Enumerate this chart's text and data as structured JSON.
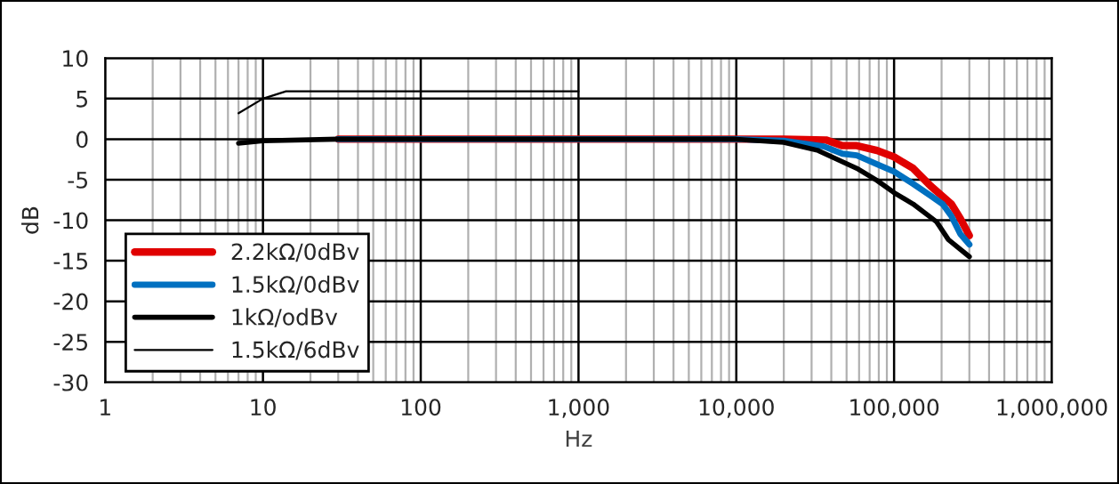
{
  "chart_data": {
    "type": "line",
    "xlabel": "Hz",
    "ylabel": "dB",
    "log": "x",
    "grid": true,
    "legend": "bottom left",
    "marker": "none",
    "line_style": "solid",
    "xlim": [
      1,
      1000000
    ],
    "ylim": [
      -30,
      10
    ],
    "xticks": [
      1,
      10,
      100,
      {
        "value": 1000,
        "label": "1,000"
      },
      {
        "value": 10000,
        "label": "10,000"
      },
      {
        "value": 100000,
        "label": "100,000"
      },
      {
        "value": 1000000,
        "label": "1,000,000"
      }
    ],
    "yticks": [
      -30,
      -25,
      -20,
      -15,
      -10,
      -5,
      0,
      5,
      10
    ],
    "series": [
      {
        "name": "2.2kΩ/0dBv",
        "color": "#e00000",
        "x": [
          30,
          10000,
          20000,
          37000,
          47000,
          58000,
          78000,
          100000,
          132000,
          171000,
          231000,
          263000,
          300000
        ],
        "values": [
          0,
          0,
          0,
          -0.1,
          -0.8,
          -0.8,
          -1.4,
          -2.2,
          -3.6,
          -5.8,
          -8,
          -9.8,
          -11.9
        ]
      },
      {
        "name": "1.5kΩ/0dBv",
        "color": "#0070c0",
        "x": [
          30,
          10000,
          20000,
          36000,
          47000,
          58000,
          78000,
          100000,
          132000,
          171000,
          203000,
          231000,
          263000,
          300000
        ],
        "values": [
          0,
          0,
          -0.2,
          -0.9,
          -1.8,
          -2,
          -3.1,
          -4,
          -5.5,
          -7,
          -8,
          -9.5,
          -11.7,
          -13
        ]
      },
      {
        "name": "1kΩ/odBv",
        "color": "#000000",
        "x": [
          7,
          10,
          30,
          10000,
          20000,
          33000,
          58000,
          78000,
          100000,
          132000,
          186000,
          221000,
          300000
        ],
        "values": [
          -0.5,
          -0.2,
          0,
          0,
          -0.4,
          -1.4,
          -3.6,
          -5.1,
          -6.6,
          -8,
          -10.2,
          -12.4,
          -14.5
        ]
      },
      {
        "name": "1.5kΩ/6dBv",
        "color": "#000000",
        "x": [
          7,
          10,
          14,
          1000
        ],
        "values": [
          3.2,
          5,
          5.9,
          5.9
        ]
      }
    ]
  }
}
